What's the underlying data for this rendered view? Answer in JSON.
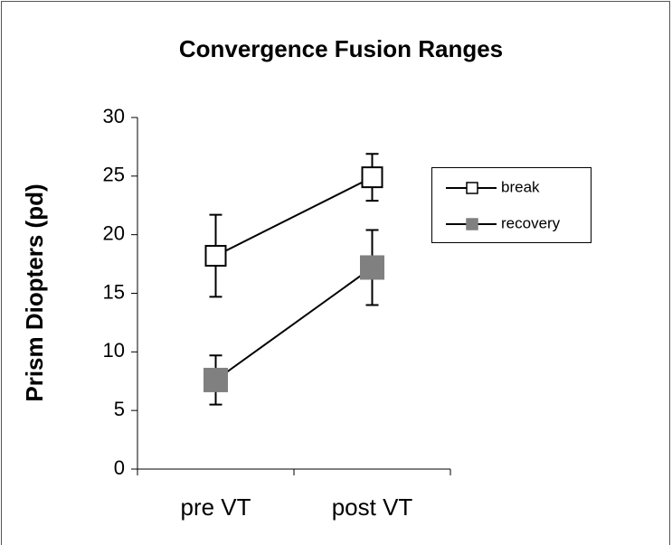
{
  "chart_data": {
    "type": "line",
    "title": "Convergence Fusion Ranges",
    "y_label": "Prism Diopters (pd)",
    "categories": [
      "pre VT",
      "post VT"
    ],
    "series": [
      {
        "name": "break",
        "color": "#ffffff",
        "values": [
          18.2,
          24.9
        ],
        "errors": [
          3.5,
          2.0
        ]
      },
      {
        "name": "recovery",
        "color": "#808080",
        "values": [
          7.6,
          17.2
        ],
        "errors": [
          2.1,
          3.2
        ]
      }
    ],
    "ylim": [
      0,
      30
    ],
    "yticks": [
      0,
      5,
      10,
      15,
      20,
      25,
      30
    ],
    "legend": "right"
  }
}
